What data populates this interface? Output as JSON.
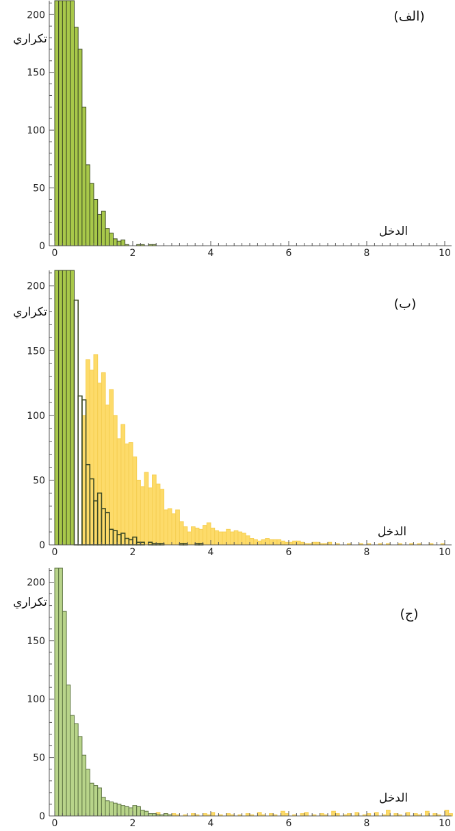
{
  "colors": {
    "green": "#a8c84a",
    "green_edge": "#3d4a25",
    "green_light": "#b8d48a",
    "green_light_edge": "#5e7443",
    "yellow": "#fddb6a",
    "yellow_edge": "#f6cf53",
    "axis": "#555555"
  },
  "chart_data": [
    {
      "type": "bar",
      "panel_label": "(الف)",
      "xlabel": "الدخل",
      "ylabel": "تكراري",
      "xlim": [
        0,
        10.2
      ],
      "ylim": [
        0,
        212
      ],
      "x_ticks": [
        0,
        2,
        4,
        6,
        8,
        10
      ],
      "y_ticks": [
        0,
        50,
        100,
        150,
        200
      ],
      "bin_width": 0.1,
      "series": [
        {
          "color": "#a8c84a",
          "edge": "#3d4a25",
          "bins_start": [
            0,
            0.1,
            0.2,
            0.3,
            0.4,
            0.5,
            0.6,
            0.7,
            0.8,
            0.9,
            1.0,
            1.1,
            1.2,
            1.3,
            1.4,
            1.5,
            1.6,
            1.7,
            1.8,
            2.1,
            2.2,
            2.4,
            2.5
          ],
          "counts": [
            212,
            212,
            212,
            212,
            212,
            189,
            170,
            120,
            70,
            54,
            40,
            27,
            30,
            15,
            11,
            6,
            4,
            5,
            1,
            1,
            1,
            1,
            1
          ]
        }
      ]
    },
    {
      "type": "bar",
      "panel_label": "(ب)",
      "xlabel": "الدخل",
      "ylabel": "تكراري",
      "xlim": [
        0,
        10.2
      ],
      "ylim": [
        0,
        212
      ],
      "x_ticks": [
        0,
        2,
        4,
        6,
        8,
        10
      ],
      "y_ticks": [
        0,
        50,
        100,
        150,
        200
      ],
      "bin_width": 0.1,
      "series": [
        {
          "color": "#fddb6a",
          "edge": "#f6cf53",
          "bins_start": [
            0.7,
            0.8,
            0.9,
            1.0,
            1.1,
            1.2,
            1.3,
            1.4,
            1.5,
            1.6,
            1.7,
            1.8,
            1.9,
            2.0,
            2.1,
            2.2,
            2.3,
            2.4,
            2.5,
            2.6,
            2.7,
            2.8,
            2.9,
            3.0,
            3.1,
            3.2,
            3.3,
            3.4,
            3.5,
            3.6,
            3.7,
            3.8,
            3.9,
            4.0,
            4.1,
            4.2,
            4.3,
            4.4,
            4.5,
            4.6,
            4.7,
            4.8,
            4.9,
            5.0,
            5.1,
            5.2,
            5.3,
            5.4,
            5.5,
            5.6,
            5.7,
            5.8,
            5.9,
            6.0,
            6.1,
            6.2,
            6.3,
            6.4,
            6.5,
            6.6,
            6.7,
            6.8,
            6.9,
            7.0,
            7.2,
            7.5,
            7.8,
            8.0,
            8.3,
            8.5,
            8.8,
            9.1,
            9.3,
            9.6,
            9.9
          ],
          "counts": [
            100,
            143,
            135,
            147,
            125,
            133,
            108,
            120,
            100,
            82,
            93,
            78,
            79,
            68,
            50,
            45,
            56,
            44,
            54,
            47,
            43,
            27,
            28,
            24,
            27,
            18,
            14,
            10,
            14,
            13,
            12,
            15,
            17,
            13,
            11,
            10,
            10,
            12,
            10,
            11,
            10,
            9,
            7,
            5,
            4,
            3,
            4,
            5,
            4,
            4,
            4,
            3,
            2,
            2,
            3,
            3,
            2,
            1,
            1,
            2,
            2,
            1,
            1,
            2,
            1,
            1,
            1,
            1,
            1,
            1,
            1,
            1,
            1,
            1,
            1
          ]
        },
        {
          "color": "#a8c84a",
          "edge": "#3d4a25",
          "outline_only_from": 0.5,
          "bins_start": [
            0,
            0.1,
            0.2,
            0.3,
            0.4,
            0.5,
            0.6,
            0.7,
            0.8,
            0.9,
            1.0,
            1.1,
            1.2,
            1.3,
            1.4,
            1.5,
            1.6,
            1.7,
            1.8,
            1.9,
            2.0,
            2.1,
            2.2,
            2.4,
            2.5,
            2.6,
            2.7,
            3.2,
            3.3,
            3.6,
            3.7
          ],
          "counts": [
            212,
            212,
            212,
            212,
            212,
            189,
            115,
            112,
            62,
            51,
            34,
            40,
            28,
            25,
            12,
            11,
            8,
            9,
            5,
            4,
            6,
            2,
            2,
            2,
            1,
            1,
            1,
            1,
            1,
            1,
            1
          ]
        }
      ]
    },
    {
      "type": "bar",
      "panel_label": "(ج)",
      "xlabel": "الدخل",
      "ylabel": "تكراري",
      "xlim": [
        0,
        10.2
      ],
      "ylim": [
        0,
        212
      ],
      "x_ticks": [
        0,
        2,
        4,
        6,
        8,
        10
      ],
      "y_ticks": [
        0,
        50,
        100,
        150,
        200
      ],
      "bin_width": 0.1,
      "series": [
        {
          "color": "#fddb6a",
          "edge": "#f6cf53",
          "bins_start": [
            2.5,
            2.6,
            2.8,
            2.9,
            3.0,
            3.1,
            3.3,
            3.5,
            3.6,
            3.8,
            3.9,
            4.0,
            4.2,
            4.4,
            4.5,
            4.7,
            4.9,
            5.0,
            5.2,
            5.3,
            5.5,
            5.6,
            5.8,
            5.9,
            6.1,
            6.3,
            6.4,
            6.6,
            6.8,
            6.9,
            7.1,
            7.2,
            7.4,
            7.5,
            7.7,
            7.9,
            8.0,
            8.2,
            8.4,
            8.5,
            8.7,
            8.8,
            9.0,
            9.2,
            9.3,
            9.5,
            9.7,
            9.8,
            10.0,
            10.1
          ],
          "counts": [
            1,
            3,
            2,
            1,
            2,
            1,
            1,
            2,
            1,
            2,
            1,
            3,
            1,
            2,
            1,
            1,
            2,
            1,
            3,
            1,
            2,
            1,
            4,
            2,
            1,
            2,
            3,
            1,
            2,
            1,
            4,
            2,
            1,
            2,
            3,
            1,
            2,
            3,
            1,
            5,
            2,
            1,
            3,
            2,
            1,
            4,
            2,
            1,
            5,
            2
          ]
        },
        {
          "color": "#b8d48a",
          "edge": "#5e7443",
          "bins_start": [
            0,
            0.1,
            0.2,
            0.3,
            0.4,
            0.5,
            0.6,
            0.7,
            0.8,
            0.9,
            1.0,
            1.1,
            1.2,
            1.3,
            1.4,
            1.5,
            1.6,
            1.7,
            1.8,
            1.9,
            2.0,
            2.1,
            2.2,
            2.3,
            2.4,
            2.5,
            2.6,
            2.7,
            2.8,
            2.9
          ],
          "counts": [
            212,
            212,
            175,
            112,
            86,
            79,
            68,
            52,
            40,
            28,
            26,
            24,
            16,
            13,
            12,
            11,
            10,
            9,
            8,
            7,
            9,
            8,
            5,
            4,
            2,
            2,
            1,
            1,
            2,
            1
          ]
        }
      ]
    }
  ]
}
